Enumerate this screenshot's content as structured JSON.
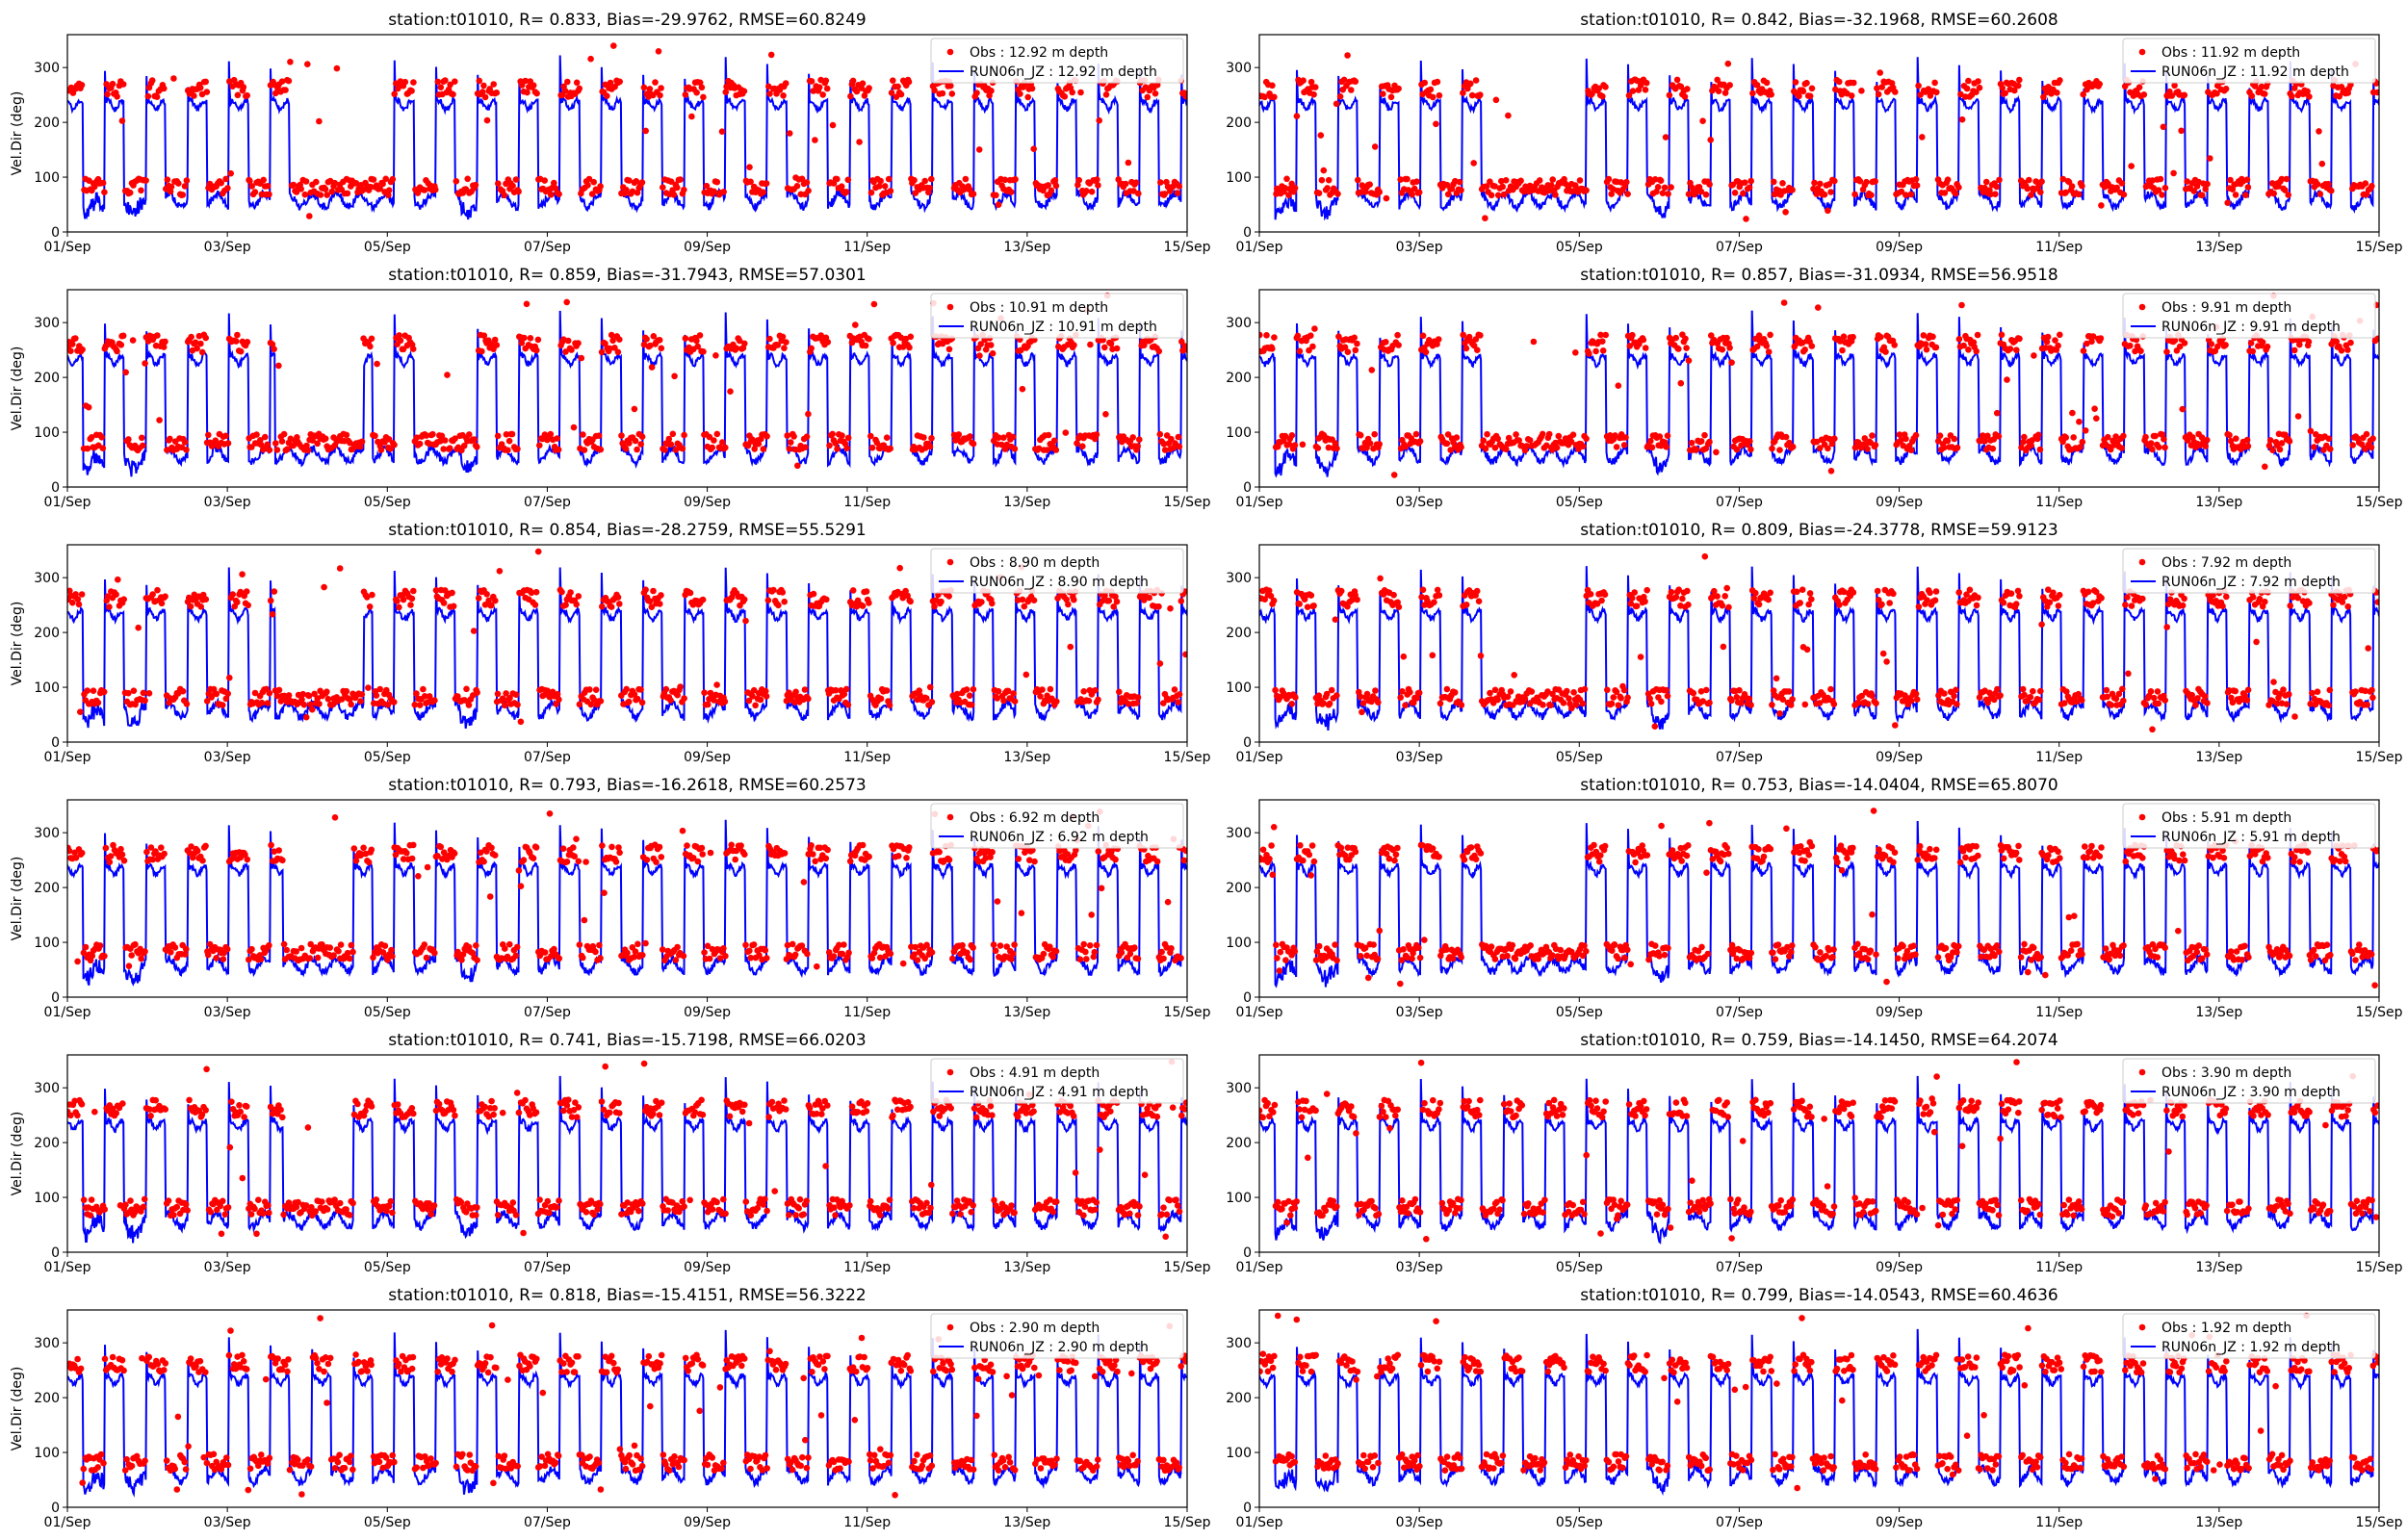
{
  "figure": {
    "station": "t01010",
    "obs_color": "#ff0000",
    "model_color": "#0000ff",
    "xtick_labels": [
      "01/Sep",
      "03/Sep",
      "05/Sep",
      "07/Sep",
      "09/Sep",
      "11/Sep",
      "13/Sep",
      "15/Sep"
    ],
    "ytick_labels": [
      "0",
      "100",
      "200",
      "300"
    ]
  },
  "chart_data": [
    {
      "type": "scatter+line",
      "title": "station:t01010, R= 0.833, Bias=-29.9762, RMSE=60.8249",
      "ylabel": "Vel.Dir (deg)",
      "xlim": [
        "01/Sep",
        "15/Sep"
      ],
      "ylim": [
        0,
        360
      ],
      "legend_position": "upper-right",
      "series": [
        {
          "name": "Obs : 12.92 m depth",
          "kind": "scatter"
        },
        {
          "name": "RUN06n_JZ : 12.92 m depth",
          "kind": "line"
        }
      ],
      "obs_seed": 11,
      "obs_calm_bands": [
        [
          3.0,
          3.95
        ]
      ]
    },
    {
      "type": "scatter+line",
      "title": "station:t01010, R= 0.842, Bias=-32.1968, RMSE=60.2608",
      "ylabel": "",
      "xlim": [
        "01/Sep",
        "15/Sep"
      ],
      "ylim": [
        0,
        360
      ],
      "legend_position": "upper-right",
      "series": [
        {
          "name": "Obs : 11.92 m depth",
          "kind": "scatter"
        },
        {
          "name": "RUN06n_JZ : 11.92 m depth",
          "kind": "line"
        }
      ],
      "obs_seed": 12,
      "obs_calm_bands": [
        [
          3.0,
          3.95
        ]
      ]
    },
    {
      "type": "scatter+line",
      "title": "station:t01010, R= 0.859, Bias=-31.7943, RMSE=57.0301",
      "ylabel": "Vel.Dir (deg)",
      "xlim": [
        "01/Sep",
        "15/Sep"
      ],
      "ylim": [
        0,
        360
      ],
      "legend_position": "upper-right",
      "series": [
        {
          "name": "Obs : 10.91 m depth",
          "kind": "scatter"
        },
        {
          "name": "RUN06n_JZ : 10.91 m depth",
          "kind": "line"
        }
      ],
      "obs_seed": 13,
      "obs_calm_bands": [
        [
          2.6,
          3.7
        ],
        [
          4.6,
          5.1
        ]
      ]
    },
    {
      "type": "scatter+line",
      "title": "station:t01010, R= 0.857, Bias=-31.0934, RMSE=56.9518",
      "ylabel": "",
      "xlim": [
        "01/Sep",
        "15/Sep"
      ],
      "ylim": [
        0,
        360
      ],
      "legend_position": "upper-right",
      "series": [
        {
          "name": "Obs : 9.91 m depth",
          "kind": "scatter"
        },
        {
          "name": "RUN06n_JZ : 9.91 m depth",
          "kind": "line"
        }
      ],
      "obs_seed": 14,
      "obs_calm_bands": [
        [
          3.0,
          3.95
        ]
      ]
    },
    {
      "type": "scatter+line",
      "title": "station:t01010, R= 0.854, Bias=-28.2759, RMSE=55.5291",
      "ylabel": "Vel.Dir (deg)",
      "xlim": [
        "01/Sep",
        "15/Sep"
      ],
      "ylim": [
        0,
        360
      ],
      "legend_position": "upper-right",
      "series": [
        {
          "name": "Obs : 8.90 m depth",
          "kind": "scatter"
        },
        {
          "name": "RUN06n_JZ : 8.90 m depth",
          "kind": "line"
        }
      ],
      "obs_seed": 15,
      "obs_calm_bands": [
        [
          2.6,
          3.7
        ]
      ]
    },
    {
      "type": "scatter+line",
      "title": "station:t01010, R= 0.809, Bias=-24.3778, RMSE=59.9123",
      "ylabel": "",
      "xlim": [
        "01/Sep",
        "15/Sep"
      ],
      "ylim": [
        0,
        360
      ],
      "legend_position": "upper-right",
      "series": [
        {
          "name": "Obs : 7.92 m depth",
          "kind": "scatter"
        },
        {
          "name": "RUN06n_JZ : 7.92 m depth",
          "kind": "line"
        }
      ],
      "obs_seed": 16,
      "obs_calm_bands": [
        [
          3.0,
          3.95
        ]
      ]
    },
    {
      "type": "scatter+line",
      "title": "station:t01010, R= 0.793, Bias=-16.2618, RMSE=60.2573",
      "ylabel": "Vel.Dir (deg)",
      "xlim": [
        "01/Sep",
        "15/Sep"
      ],
      "ylim": [
        0,
        360
      ],
      "legend_position": "upper-right",
      "series": [
        {
          "name": "Obs : 6.92 m depth",
          "kind": "scatter"
        },
        {
          "name": "RUN06n_JZ : 6.92 m depth",
          "kind": "line"
        }
      ],
      "obs_seed": 17,
      "obs_calm_bands": [
        [
          2.7,
          3.5
        ]
      ]
    },
    {
      "type": "scatter+line",
      "title": "station:t01010, R= 0.753, Bias=-14.0404, RMSE=65.8070",
      "ylabel": "",
      "xlim": [
        "01/Sep",
        "15/Sep"
      ],
      "ylim": [
        0,
        360
      ],
      "legend_position": "upper-right",
      "series": [
        {
          "name": "Obs : 5.91 m depth",
          "kind": "scatter"
        },
        {
          "name": "RUN06n_JZ : 5.91 m depth",
          "kind": "line"
        }
      ],
      "obs_seed": 18,
      "obs_calm_bands": [
        [
          3.0,
          3.95
        ]
      ]
    },
    {
      "type": "scatter+line",
      "title": "station:t01010, R= 0.741, Bias=-15.7198, RMSE=66.0203",
      "ylabel": "Vel.Dir (deg)",
      "xlim": [
        "01/Sep",
        "15/Sep"
      ],
      "ylim": [
        0,
        360
      ],
      "legend_position": "upper-right",
      "series": [
        {
          "name": "Obs : 4.91 m depth",
          "kind": "scatter"
        },
        {
          "name": "RUN06n_JZ : 4.91 m depth",
          "kind": "line"
        }
      ],
      "obs_seed": 19,
      "obs_calm_bands": [
        [
          2.7,
          3.5
        ]
      ]
    },
    {
      "type": "scatter+line",
      "title": "station:t01010, R= 0.759, Bias=-14.1450, RMSE=64.2074",
      "ylabel": "",
      "xlim": [
        "01/Sep",
        "15/Sep"
      ],
      "ylim": [
        0,
        360
      ],
      "legend_position": "upper-right",
      "series": [
        {
          "name": "Obs : 3.90 m depth",
          "kind": "scatter"
        },
        {
          "name": "RUN06n_JZ : 3.90 m depth",
          "kind": "line"
        }
      ],
      "obs_seed": 20,
      "obs_calm_bands": []
    },
    {
      "type": "scatter+line",
      "title": "station:t01010, R= 0.818, Bias=-15.4151, RMSE=56.3222",
      "ylabel": "Vel.Dir (deg)",
      "xlim": [
        "01/Sep",
        "15/Sep"
      ],
      "ylim": [
        0,
        360
      ],
      "legend_position": "upper-right",
      "series": [
        {
          "name": "Obs : 2.90 m depth",
          "kind": "scatter"
        },
        {
          "name": "RUN06n_JZ : 2.90 m depth",
          "kind": "line"
        }
      ],
      "obs_seed": 21,
      "obs_calm_bands": []
    },
    {
      "type": "scatter+line",
      "title": "station:t01010, R= 0.799, Bias=-14.0543, RMSE=60.4636",
      "ylabel": "",
      "xlim": [
        "01/Sep",
        "15/Sep"
      ],
      "ylim": [
        0,
        360
      ],
      "legend_position": "upper-right",
      "series": [
        {
          "name": "Obs : 1.92 m depth",
          "kind": "scatter"
        },
        {
          "name": "RUN06n_JZ : 1.92 m depth",
          "kind": "line"
        }
      ],
      "obs_seed": 22,
      "obs_calm_bands": []
    }
  ]
}
